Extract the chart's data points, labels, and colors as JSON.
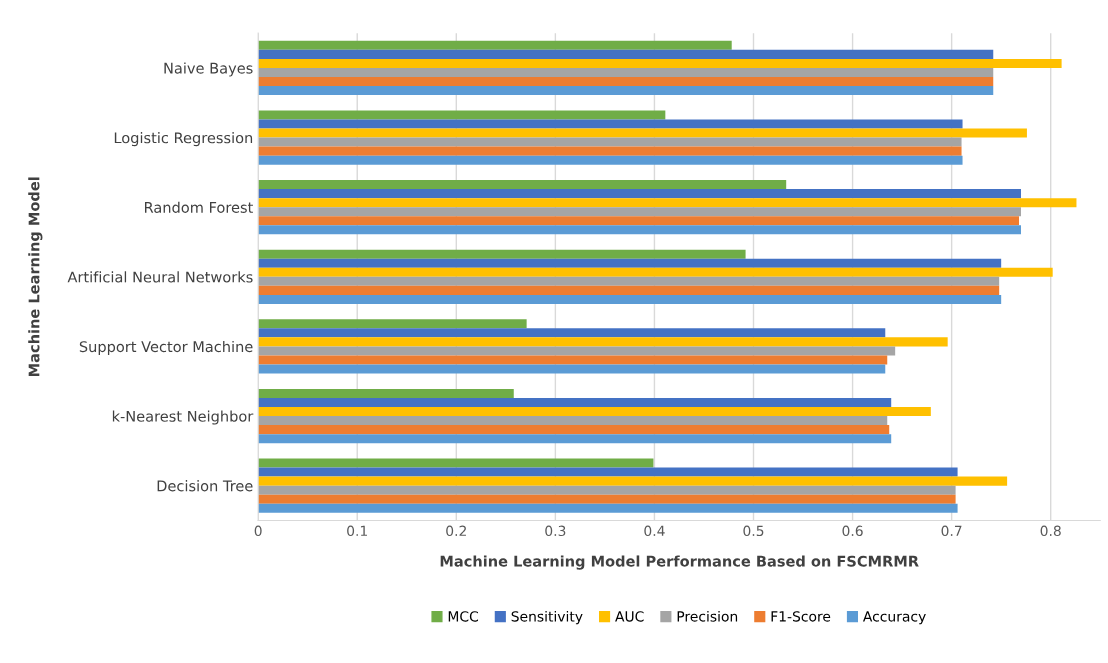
{
  "chart_data": {
    "type": "bar",
    "orientation": "horizontal",
    "xlabel": "Machine Learning Model Performance Based on FSCMRMR",
    "ylabel": "Machine Learning Model",
    "categories": [
      "Naive Bayes",
      "Logistic Regression",
      "Random Forest",
      "Artificial Neural Networks",
      "Support Vector Machine",
      "k-Nearest Neighbor",
      "Decision Tree"
    ],
    "series": [
      {
        "name": "MCC",
        "color": "#70ad47",
        "values": [
          0.478,
          0.411,
          0.533,
          0.492,
          0.271,
          0.258,
          0.399
        ]
      },
      {
        "name": "Sensitivity",
        "color": "#4472c4",
        "values": [
          0.742,
          0.711,
          0.77,
          0.75,
          0.633,
          0.639,
          0.706
        ]
      },
      {
        "name": "AUC",
        "color": "#ffc000",
        "values": [
          0.811,
          0.776,
          0.826,
          0.802,
          0.696,
          0.679,
          0.756
        ]
      },
      {
        "name": "Precision",
        "color": "#a5a5a5",
        "values": [
          0.742,
          0.71,
          0.77,
          0.748,
          0.643,
          0.635,
          0.704
        ]
      },
      {
        "name": "F1-Score",
        "color": "#ed7d31",
        "values": [
          0.742,
          0.71,
          0.768,
          0.748,
          0.635,
          0.637,
          0.704
        ]
      },
      {
        "name": "Accuracy",
        "color": "#5b9bd5",
        "values": [
          0.742,
          0.711,
          0.77,
          0.75,
          0.633,
          0.639,
          0.706
        ]
      }
    ],
    "xlim": [
      0,
      0.85
    ],
    "xticks": [
      0,
      0.1,
      0.2,
      0.3,
      0.4,
      0.5,
      0.6,
      0.7,
      0.8
    ],
    "grid": "x",
    "legend": "bottom"
  }
}
